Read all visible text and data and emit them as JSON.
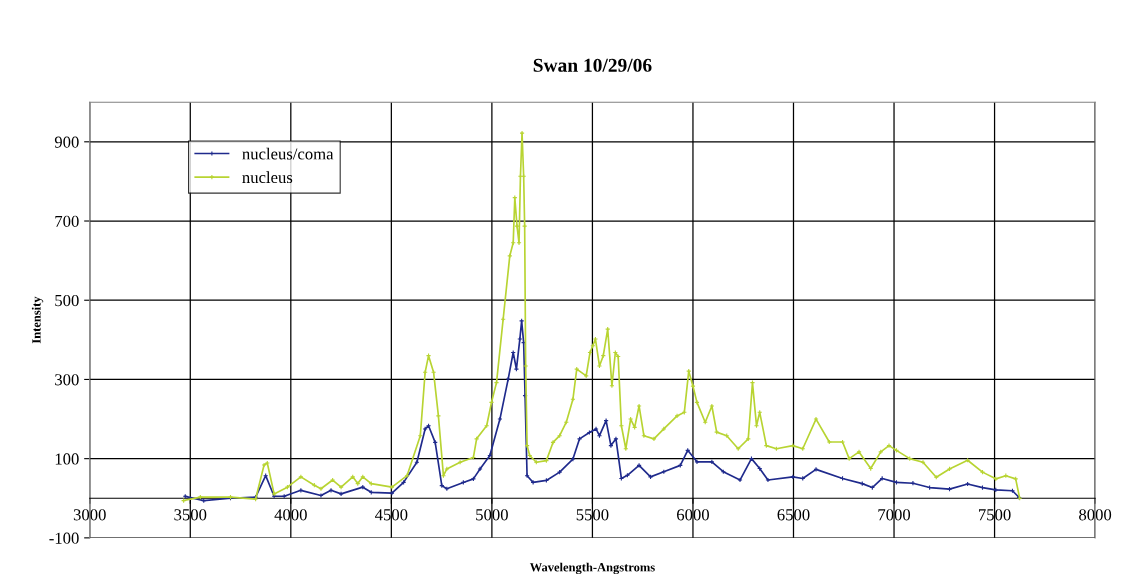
{
  "chart_data": {
    "type": "line",
    "title": "Swan 10/29/06",
    "xlabel": "Wavelength-Angstroms",
    "ylabel": "Intensity",
    "xlim": [
      3000,
      8000
    ],
    "xticks": [
      3000,
      3500,
      4000,
      4500,
      5000,
      5500,
      6000,
      6500,
      7000,
      7500,
      8000
    ],
    "ylim": [
      -100,
      1000
    ],
    "yticks": [
      -100,
      100,
      300,
      500,
      700,
      900
    ],
    "grid": true,
    "legend": "top left",
    "marker": "cross",
    "line_style": "solid",
    "series": [
      {
        "name": "nucleus/coma",
        "color": "#1f2a8c",
        "x": [
          3475,
          3567,
          3700,
          3825,
          3875,
          3917,
          3967,
          4050,
          4150,
          4200,
          4250,
          4358,
          4400,
          4503,
          4561,
          4627,
          4668,
          4685,
          4718,
          4751,
          4776,
          4858,
          4908,
          4941,
          4990,
          5040,
          5081,
          5106,
          5122,
          5139,
          5148,
          5158,
          5165,
          5175,
          5205,
          5271,
          5337,
          5403,
          5436,
          5485,
          5518,
          5535,
          5568,
          5592,
          5617,
          5644,
          5674,
          5732,
          5789,
          5855,
          5937,
          5974,
          6020,
          6094,
          6151,
          6234,
          6291,
          6332,
          6373,
          6497,
          6546,
          6612,
          6744,
          6842,
          6892,
          6941,
          7012,
          7094,
          7177,
          7276,
          7366,
          7440,
          7506,
          7589,
          7622
        ],
        "values": [
          5,
          -6,
          0,
          3,
          57,
          5,
          5,
          20,
          7,
          20,
          11,
          28,
          15,
          13,
          40,
          91,
          175,
          183,
          141,
          32,
          24,
          40,
          49,
          74,
          108,
          200,
          301,
          368,
          326,
          402,
          448,
          393,
          259,
          57,
          40,
          45,
          66,
          99,
          150,
          166,
          175,
          158,
          196,
          133,
          150,
          50,
          58,
          83,
          54,
          67,
          83,
          121,
          92,
          92,
          67,
          46,
          100,
          75,
          46,
          54,
          50,
          73,
          50,
          37,
          27,
          50,
          40,
          38,
          27,
          23,
          36,
          27,
          21,
          19,
          2
        ]
      },
      {
        "name": "nucleus",
        "color": "#b8d432",
        "x": [
          3467,
          3550,
          3700,
          3825,
          3867,
          3883,
          3917,
          3983,
          4050,
          4117,
          4150,
          4208,
          4250,
          4308,
          4333,
          4358,
          4400,
          4503,
          4578,
          4644,
          4668,
          4685,
          4710,
          4734,
          4759,
          4776,
          4842,
          4908,
          4924,
          4974,
          4998,
          5023,
          5056,
          5089,
          5106,
          5114,
          5125,
          5135,
          5142,
          5150,
          5158,
          5163,
          5168,
          5175,
          5188,
          5221,
          5271,
          5304,
          5337,
          5370,
          5403,
          5422,
          5469,
          5488,
          5502,
          5515,
          5535,
          5554,
          5576,
          5597,
          5614,
          5628,
          5644,
          5666,
          5690,
          5710,
          5732,
          5756,
          5806,
          5855,
          5921,
          5957,
          5979,
          6000,
          6020,
          6061,
          6094,
          6118,
          6168,
          6225,
          6275,
          6296,
          6316,
          6332,
          6365,
          6415,
          6497,
          6546,
          6612,
          6678,
          6744,
          6777,
          6826,
          6884,
          6934,
          6975,
          7012,
          7078,
          7144,
          7210,
          7276,
          7366,
          7440,
          7506,
          7556,
          7605,
          7625
        ],
        "values": [
          -6,
          3,
          3,
          -2,
          84,
          89,
          11,
          28,
          54,
          33,
          24,
          46,
          28,
          54,
          37,
          54,
          37,
          28,
          57,
          158,
          318,
          360,
          318,
          208,
          57,
          74,
          91,
          103,
          150,
          183,
          242,
          292,
          452,
          612,
          645,
          759,
          687,
          645,
          813,
          922,
          813,
          687,
          334,
          133,
          108,
          91,
          95,
          141,
          158,
          192,
          250,
          326,
          309,
          368,
          385,
          402,
          334,
          360,
          427,
          284,
          368,
          358,
          183,
          125,
          200,
          179,
          233,
          158,
          150,
          175,
          208,
          217,
          321,
          283,
          242,
          192,
          233,
          167,
          158,
          125,
          150,
          292,
          183,
          217,
          133,
          125,
          133,
          125,
          200,
          142,
          142,
          100,
          117,
          75,
          117,
          133,
          121,
          100,
          91,
          53,
          74,
          96,
          66,
          49,
          57,
          49,
          0
        ]
      }
    ]
  }
}
